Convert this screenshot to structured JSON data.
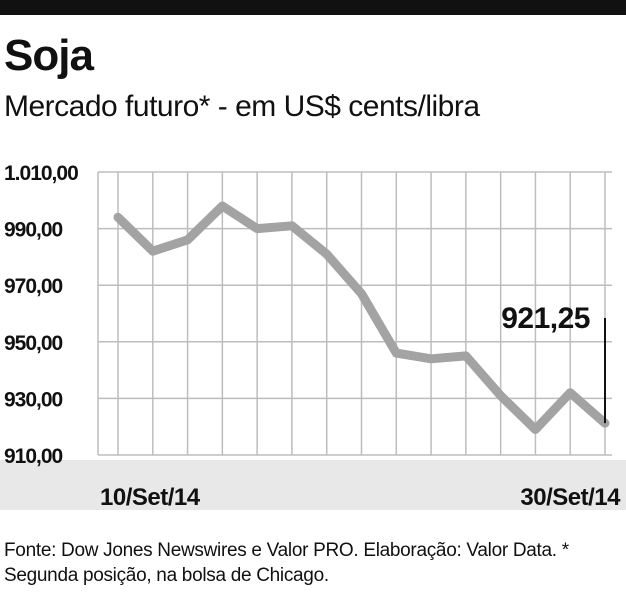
{
  "title": "Soja",
  "subtitle": "Mercado futuro* - em US$ cents/libra",
  "source": "Fonte: Dow Jones Newswires e Valor PRO. Elaboração: Valor Data. * Segunda posição, na bolsa de Chicago.",
  "colors": {
    "line": "#a3a3a3",
    "grid": "#bdbdbd",
    "band": "#e8e8e8",
    "text": "#111111",
    "marker": "#111111"
  },
  "chart_data": {
    "type": "line",
    "title": "Soja",
    "subtitle": "Mercado futuro* - em US$ cents/libra",
    "xlabel": "",
    "ylabel": "",
    "ylim": [
      910,
      1010
    ],
    "yticks": [
      1010,
      990,
      970,
      950,
      930,
      910
    ],
    "ytick_labels": [
      "1.010,00",
      "990,00",
      "970,00",
      "950,00",
      "930,00",
      "910,00"
    ],
    "xtick_labels": [
      "10/Set/14",
      "30/Set/14"
    ],
    "grid": true,
    "annotation": {
      "label": "921,25",
      "value": 921.25
    },
    "series": [
      {
        "values": [
          994,
          982,
          986,
          998,
          990,
          991,
          981,
          967,
          946,
          944,
          945,
          931,
          919,
          932,
          921.25
        ]
      }
    ]
  }
}
